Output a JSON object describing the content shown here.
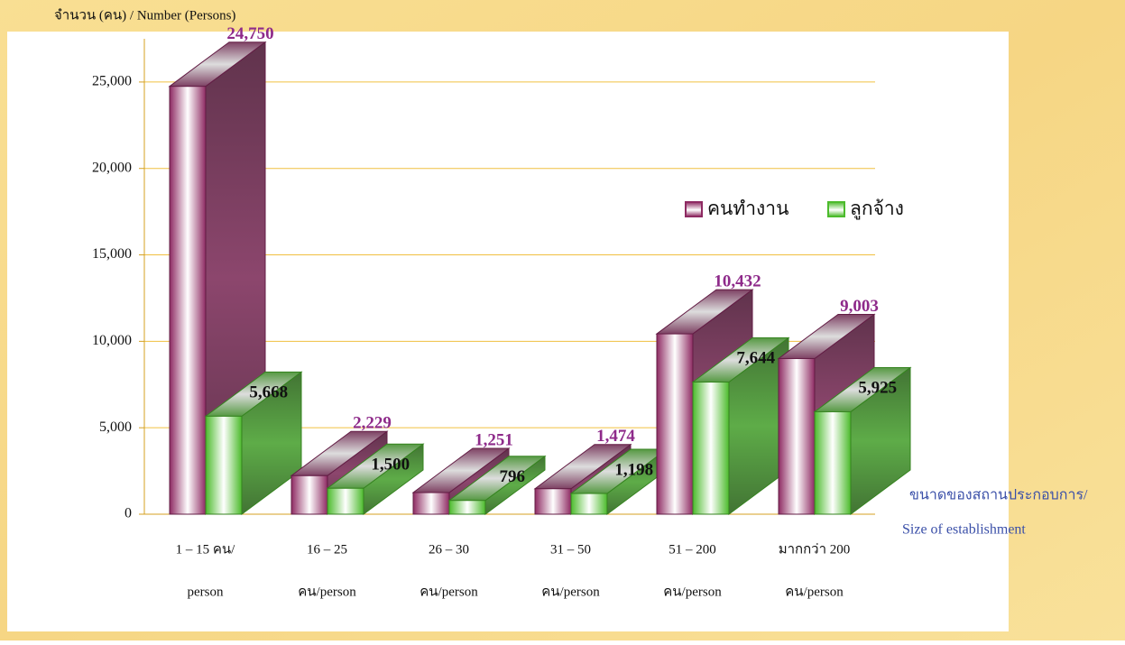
{
  "chart_data": {
    "type": "bar3d",
    "title": "จำนวน (คน) / Number  (Persons)",
    "x_label": [
      "ขนาดของสถานประกอบการ/",
      "Size of establishment"
    ],
    "categories": [
      [
        "1 – 15 คน/",
        "person"
      ],
      [
        "16 – 25",
        "คน/person"
      ],
      [
        "26 – 30",
        "คน/person"
      ],
      [
        "31 – 50",
        "คน/person"
      ],
      [
        "51 – 200",
        "คน/person"
      ],
      [
        "มากกว่า 200",
        "คน/person"
      ]
    ],
    "series": [
      {
        "name": "คนทำงาน",
        "color": "#8e2a62",
        "values": [
          24750,
          2229,
          1251,
          1474,
          10432,
          9003
        ],
        "value_labels": [
          "24,750",
          "2,229",
          "1,251",
          "1,474",
          "10,432",
          "9,003"
        ],
        "label_color": "#8e2a8a"
      },
      {
        "name": "ลูกจ้าง",
        "color": "#4cbb2c",
        "values": [
          5668,
          1500,
          796,
          1198,
          7644,
          5925
        ],
        "value_labels": [
          "5,668",
          "1,500",
          "796",
          "1,198",
          "7,644",
          "5,925"
        ],
        "label_color": "#111111"
      }
    ],
    "ylim": [
      0,
      27500
    ],
    "yticks": [
      0,
      {
        "value": 5000,
        "label": "5,000"
      },
      {
        "value": 10000,
        "label": "10,000"
      },
      {
        "value": 15000,
        "label": "15,000"
      },
      {
        "value": 20000,
        "label": "20,000"
      },
      {
        "value": 25000,
        "label": "25,000"
      }
    ],
    "grid": true
  }
}
